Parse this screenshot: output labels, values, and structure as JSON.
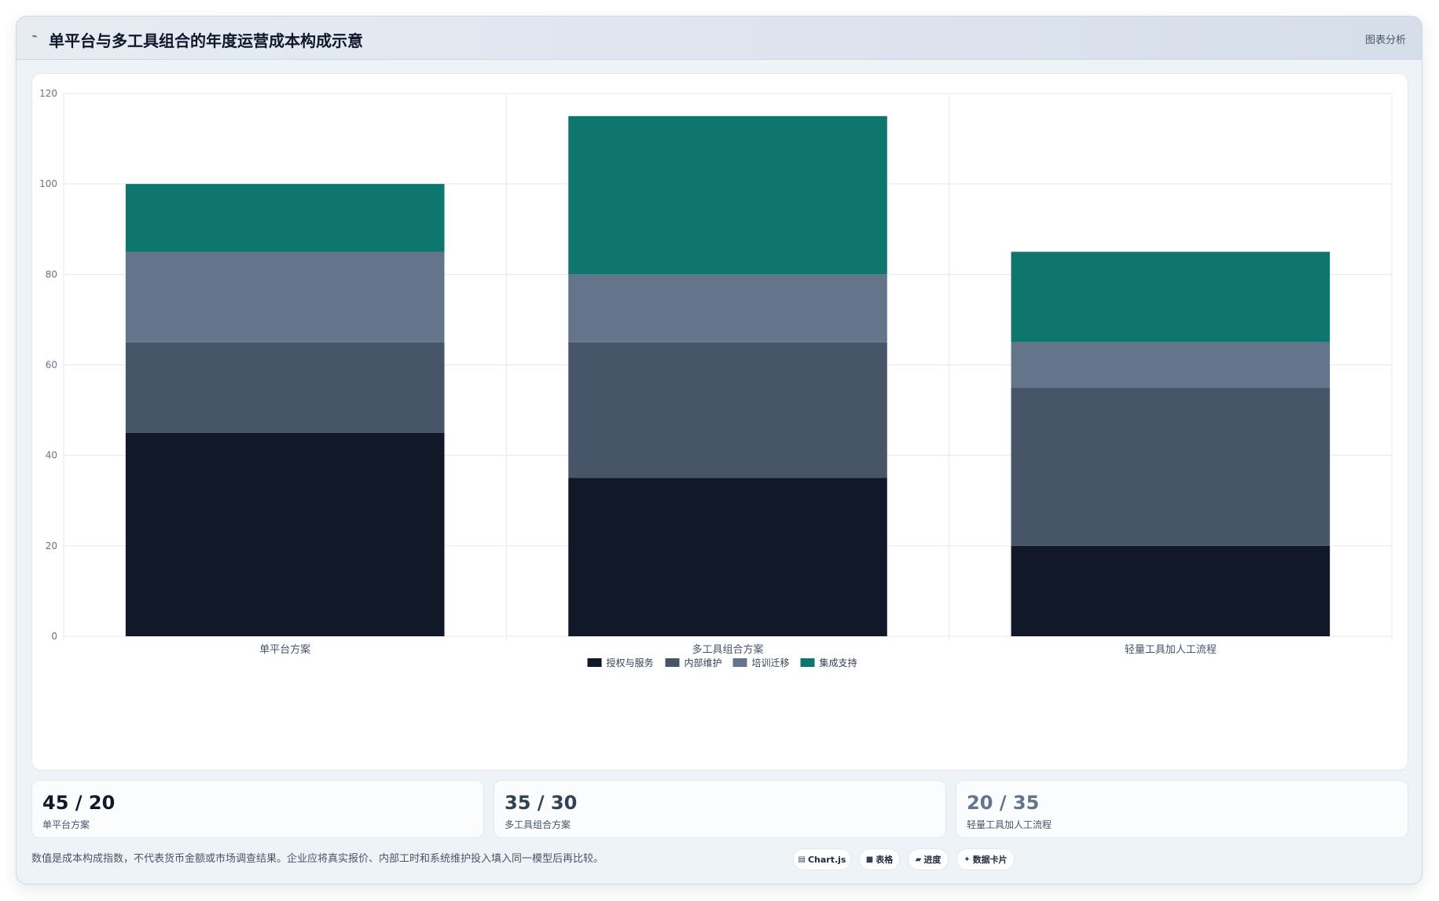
{
  "header": {
    "title": "单平台与多工具组合的年度运营成本构成示意",
    "action_label": "图表分析"
  },
  "colors": {
    "s1": "#111827",
    "s2": "#475569",
    "s3": "#64748b",
    "s4": "#0f766e"
  },
  "chart_data": {
    "type": "bar",
    "stacked": true,
    "categories": [
      "单平台方案",
      "多工具组合方案",
      "轻量工具加人工流程"
    ],
    "series": [
      {
        "name": "授权与服务",
        "values": [
          45,
          35,
          20
        ],
        "color": "#111827"
      },
      {
        "name": "内部维护",
        "values": [
          20,
          30,
          35
        ],
        "color": "#475569"
      },
      {
        "name": "培训迁移",
        "values": [
          20,
          15,
          10
        ],
        "color": "#64748b"
      },
      {
        "name": "集成支持",
        "values": [
          15,
          35,
          20
        ],
        "color": "#0f766e"
      }
    ],
    "ylim": [
      0,
      120
    ],
    "yticks": [
      0,
      20,
      40,
      60,
      80,
      100,
      120
    ],
    "grid": true,
    "legend_position": "bottom"
  },
  "cards": [
    {
      "value": "45 / 20",
      "label": "单平台方案",
      "color": "#111827"
    },
    {
      "value": "35 / 30",
      "label": "多工具组合方案",
      "color": "#334155"
    },
    {
      "value": "20 / 35",
      "label": "轻量工具加人工流程",
      "color": "#64748b"
    }
  ],
  "footer": {
    "note": "数值是成本构成指数，不代表货币金额或市场调查结果。企业应将真实报价、内部工时和系统维护投入填入同一模型后再比较。"
  },
  "chips": [
    {
      "icon": "table-icon",
      "glyph": "▤",
      "label": "Chart.js"
    },
    {
      "icon": "grid-icon",
      "glyph": "■",
      "label": "表格"
    },
    {
      "icon": "progress-icon",
      "glyph": "▰",
      "label": "进度"
    },
    {
      "icon": "sparkle-icon",
      "glyph": "✦",
      "label": "数据卡片"
    }
  ]
}
